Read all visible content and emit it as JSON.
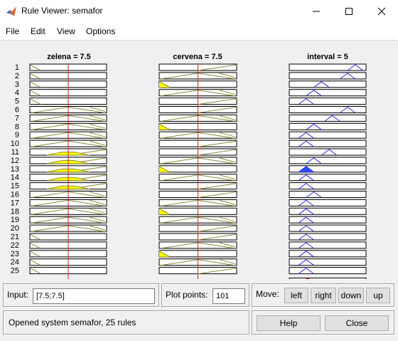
{
  "window": {
    "title": "Rule Viewer: semafor",
    "icon": "matlab-logo-icon",
    "controls": [
      "minimize-icon",
      "maximize-icon",
      "close-icon"
    ]
  },
  "menu": [
    "File",
    "Edit",
    "View",
    "Options"
  ],
  "plots": {
    "columns": [
      {
        "title": "zelena = 7.5",
        "type": "input",
        "value": 7.5,
        "rules": [
          [
            "dec",
            0,
            false
          ],
          [
            "dec",
            0,
            false
          ],
          [
            "dec",
            0,
            false
          ],
          [
            "dec",
            0,
            false
          ],
          [
            "dec",
            0,
            false
          ],
          [
            "mid",
            0,
            false
          ],
          [
            "mid",
            0,
            false
          ],
          [
            "mid",
            0,
            false
          ],
          [
            "mid",
            0,
            false
          ],
          [
            "mid",
            0,
            false
          ],
          [
            "inc",
            0.5,
            true
          ],
          [
            "inc",
            0.5,
            true
          ],
          [
            "inc",
            0.5,
            true
          ],
          [
            "inc",
            0.5,
            true
          ],
          [
            "inc",
            0.5,
            true
          ],
          [
            "mid",
            0,
            false
          ],
          [
            "mid",
            0,
            false
          ],
          [
            "mid",
            0,
            false
          ],
          [
            "mid",
            0,
            false
          ],
          [
            "mid",
            0,
            false
          ],
          [
            "dec",
            0,
            false
          ],
          [
            "dec",
            0,
            false
          ],
          [
            "dec",
            0,
            false
          ],
          [
            "dec",
            0,
            false
          ],
          [
            "dec",
            0,
            false
          ]
        ]
      },
      {
        "title": "cervena = 7.5",
        "type": "input",
        "value": 7.5,
        "rules": [
          [
            "inc",
            0,
            false
          ],
          [
            "mid",
            0,
            false
          ],
          [
            "dec",
            0.5,
            true
          ],
          [
            "mid",
            0,
            false
          ],
          [
            "inc",
            0,
            false
          ],
          [
            "inc",
            0,
            false
          ],
          [
            "mid",
            0,
            false
          ],
          [
            "dec",
            0.5,
            true
          ],
          [
            "mid",
            0,
            false
          ],
          [
            "inc",
            0,
            false
          ],
          [
            "inc",
            0,
            false
          ],
          [
            "mid",
            0,
            false
          ],
          [
            "dec",
            0.5,
            true
          ],
          [
            "mid",
            0,
            false
          ],
          [
            "inc",
            0,
            false
          ],
          [
            "inc",
            0,
            false
          ],
          [
            "mid",
            0,
            false
          ],
          [
            "dec",
            0.5,
            true
          ],
          [
            "mid",
            0,
            false
          ],
          [
            "inc",
            0,
            false
          ],
          [
            "inc",
            0,
            false
          ],
          [
            "mid",
            0,
            false
          ],
          [
            "dec",
            0.5,
            true
          ],
          [
            "mid",
            0,
            false
          ],
          [
            "inc",
            0,
            false
          ]
        ]
      },
      {
        "title": "interval = 5",
        "type": "output",
        "value": 5,
        "rules": [
          [
            0.86,
            0
          ],
          [
            0.76,
            0
          ],
          [
            0.42,
            0
          ],
          [
            0.32,
            0
          ],
          [
            0.22,
            0
          ],
          [
            0.76,
            0
          ],
          [
            0.56,
            0
          ],
          [
            0.32,
            0
          ],
          [
            0.22,
            0
          ],
          [
            0.22,
            0
          ],
          [
            0.52,
            0
          ],
          [
            0.32,
            0
          ],
          [
            0.22,
            0.5
          ],
          [
            0.22,
            0
          ],
          [
            0.22,
            0
          ],
          [
            0.32,
            0
          ],
          [
            0.22,
            0
          ],
          [
            0.22,
            0
          ],
          [
            0.22,
            0
          ],
          [
            0.22,
            0
          ],
          [
            0.22,
            0
          ],
          [
            0.22,
            0
          ],
          [
            0.22,
            0
          ],
          [
            0.22,
            0
          ],
          [
            0.22,
            0
          ]
        ]
      }
    ],
    "row_labels": [
      "1",
      "2",
      "3",
      "4",
      "5",
      "6",
      "7",
      "8",
      "9",
      "10",
      "11",
      "12",
      "13",
      "14",
      "15",
      "16",
      "17",
      "18",
      "19",
      "20",
      "21",
      "22",
      "23",
      "24",
      "25"
    ]
  },
  "input": {
    "label": "Input:",
    "value": "[7.5;7.5]"
  },
  "plot_points": {
    "label": "Plot points:",
    "value": "101"
  },
  "move": {
    "label": "Move:",
    "buttons": [
      "left",
      "right",
      "down",
      "up"
    ]
  },
  "status": {
    "text": "Opened system semafor, 25 rules"
  },
  "help_button": "Help",
  "close_button": "Close",
  "colors": {
    "fill": "#ffff00",
    "input_mf_line": "#8b8b3a",
    "output_mf_line": "#2a2ae0",
    "output_fill": "#3050ff",
    "value_line": "#e02020",
    "defuzz_marker": "#ff0000"
  }
}
